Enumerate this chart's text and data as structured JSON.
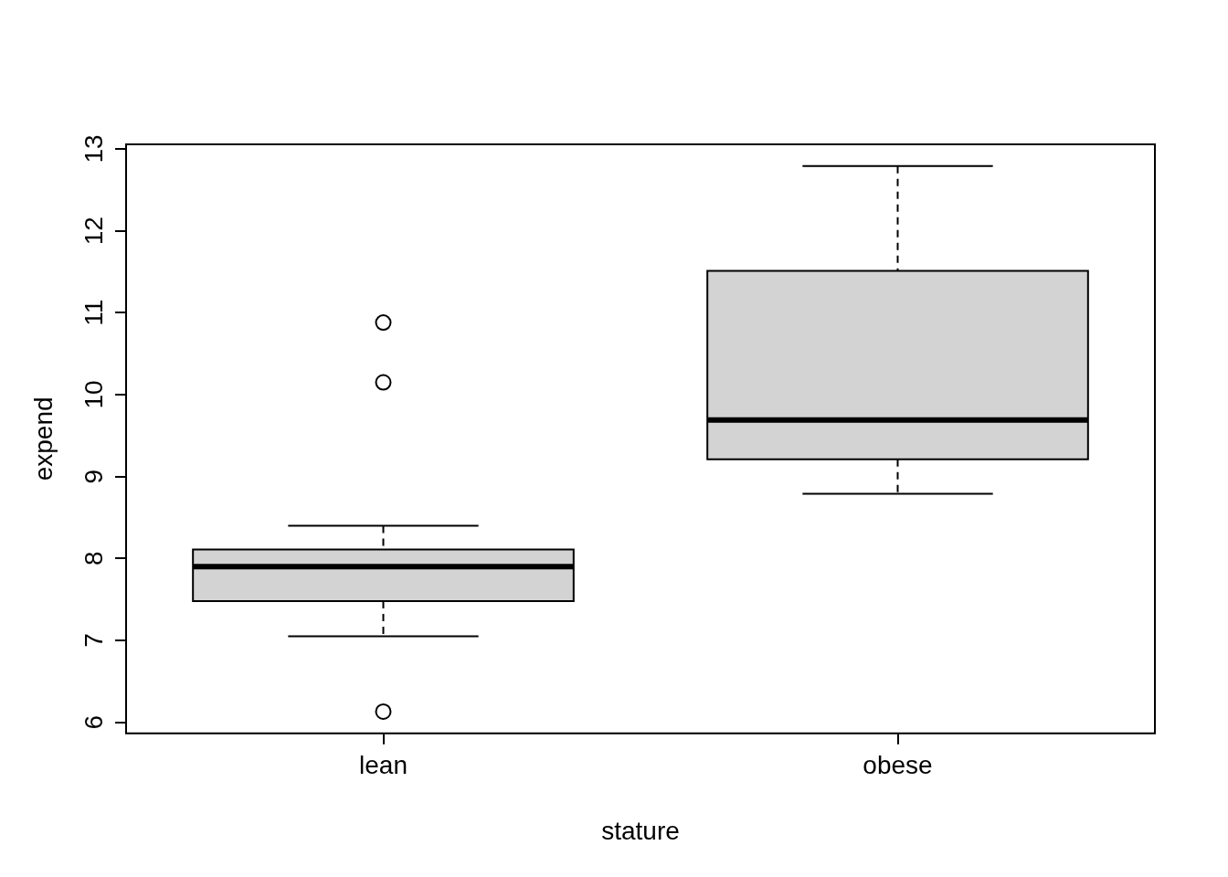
{
  "chart_data": {
    "type": "box",
    "xlabel": "stature",
    "ylabel": "expend",
    "categories": [
      "lean",
      "obese"
    ],
    "boxes": [
      {
        "low": 7.05,
        "q1": 7.48,
        "median": 7.9,
        "q3": 8.11,
        "high": 8.4,
        "outliers": [
          6.13,
          10.15,
          10.88
        ]
      },
      {
        "low": 8.79,
        "q1": 9.21,
        "median": 9.69,
        "q3": 11.51,
        "high": 12.79
      }
    ],
    "color": "#d3d3d3",
    "ylim": [
      5.864,
      13.056
    ],
    "yticks": [
      6,
      7,
      8,
      9,
      10,
      11,
      12,
      13
    ],
    "grid": false,
    "legend": false,
    "marker": "circle"
  }
}
